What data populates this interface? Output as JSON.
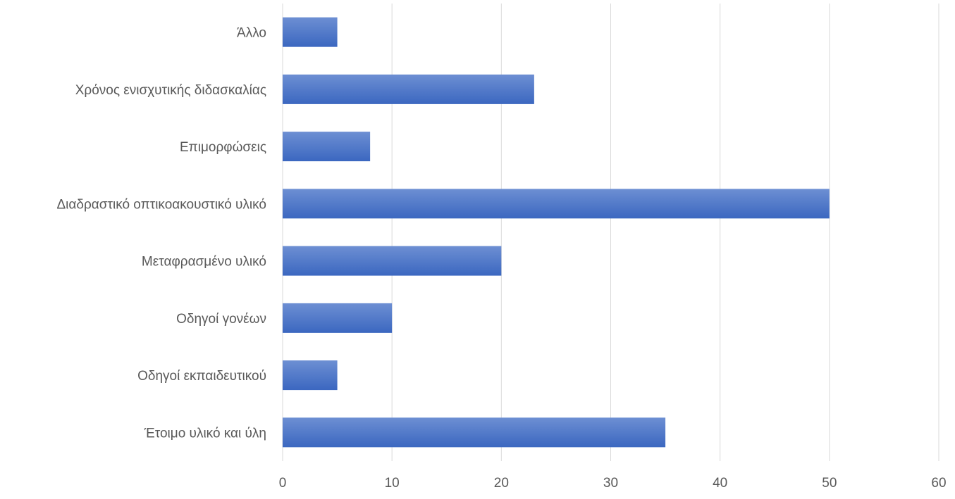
{
  "chart_data": {
    "type": "bar",
    "orientation": "horizontal",
    "categories": [
      "Άλλο",
      "Χρόνος ενισχυτικής διδασκαλίας",
      "Επιμορφώσεις",
      "Διαδραστικό οπτικοακουστικό υλικό",
      "Μεταφρασμένο υλικό",
      "Οδηγοί γονέων",
      "Οδηγοί εκπαιδευτικού",
      "Έτοιμο υλικό και ύλη"
    ],
    "values": [
      5,
      23,
      8,
      50,
      20,
      10,
      5,
      35
    ],
    "xlim": [
      0,
      60
    ],
    "xticks": [
      "0",
      "10",
      "20",
      "30",
      "40",
      "50",
      "60"
    ],
    "title": "",
    "xlabel": "",
    "ylabel": "",
    "grid": true,
    "legend": "none",
    "bar_color": "#4472C4",
    "bar_gradient_top": "#6D8FD3",
    "bar_gradient_bottom": "#3B67C0"
  }
}
